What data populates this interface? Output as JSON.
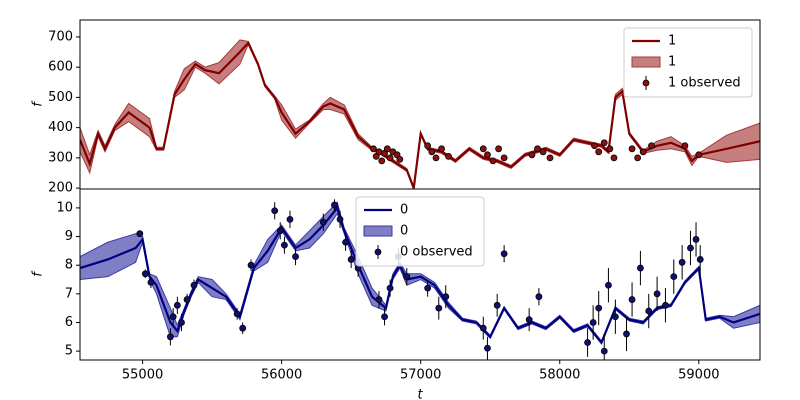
{
  "chart_data": [
    {
      "type": "line",
      "ylabel": "f",
      "xlim": [
        54550,
        59440
      ],
      "ylim": [
        197,
        756
      ],
      "yticks": [
        200,
        300,
        400,
        500,
        600,
        700
      ],
      "legend": "upper right",
      "series": [
        {
          "name": "1",
          "kind": "line",
          "color": "#800000",
          "x": [
            54550,
            54620,
            54680,
            54730,
            54800,
            54900,
            55050,
            55100,
            55150,
            55230,
            55300,
            55380,
            55450,
            55550,
            55700,
            55760,
            55830,
            55880,
            55950,
            56000,
            56100,
            56200,
            56300,
            56350,
            56450,
            56550,
            56650,
            56700,
            56800,
            56900,
            56950,
            57000,
            57050,
            57150,
            57250,
            57350,
            57450,
            57550,
            57650,
            57750,
            57900,
            58000,
            58100,
            58200,
            58300,
            58350,
            58400,
            58450,
            58500,
            58600,
            58700,
            58800,
            58900,
            58950,
            59000,
            59200,
            59440
          ],
          "values": [
            360,
            280,
            380,
            330,
            400,
            450,
            400,
            330,
            330,
            510,
            560,
            610,
            590,
            580,
            650,
            680,
            610,
            540,
            500,
            450,
            380,
            420,
            470,
            480,
            460,
            370,
            330,
            320,
            290,
            260,
            200,
            380,
            330,
            320,
            290,
            330,
            300,
            290,
            270,
            310,
            330,
            310,
            360,
            350,
            340,
            320,
            500,
            520,
            380,
            320,
            340,
            350,
            330,
            290,
            310,
            330,
            355
          ]
        },
        {
          "name": "1",
          "kind": "band",
          "color": "#a83a3a",
          "x": [
            54550,
            54620,
            54680,
            54730,
            54800,
            54900,
            55050,
            55100,
            55150,
            55230,
            55300,
            55380,
            55450,
            55550,
            55700,
            55760,
            55830,
            55880,
            55950,
            56000,
            56100,
            56200,
            56300,
            56350,
            56450,
            56550,
            56650,
            56700,
            56800,
            56900,
            56950,
            57000,
            57050,
            57150,
            57250,
            57350,
            57450,
            57550,
            57650,
            57750,
            57900,
            58000,
            58100,
            58200,
            58300,
            58350,
            58400,
            58450,
            58500,
            58600,
            58700,
            58800,
            58900,
            58950,
            59000,
            59200,
            59440
          ],
          "lower": [
            320,
            250,
            370,
            320,
            390,
            420,
            370,
            325,
            325,
            500,
            525,
            600,
            580,
            545,
            610,
            675,
            605,
            535,
            495,
            425,
            365,
            415,
            460,
            460,
            445,
            360,
            325,
            315,
            285,
            255,
            195,
            375,
            325,
            315,
            285,
            325,
            295,
            285,
            265,
            305,
            325,
            305,
            355,
            345,
            335,
            315,
            490,
            510,
            375,
            315,
            325,
            330,
            320,
            275,
            305,
            285,
            295
          ],
          "upper": [
            400,
            310,
            390,
            340,
            410,
            480,
            430,
            335,
            335,
            520,
            595,
            620,
            600,
            615,
            690,
            685,
            615,
            545,
            505,
            475,
            395,
            425,
            480,
            500,
            475,
            380,
            335,
            325,
            295,
            265,
            205,
            385,
            335,
            325,
            295,
            335,
            305,
            295,
            275,
            315,
            335,
            315,
            365,
            355,
            345,
            325,
            510,
            530,
            385,
            325,
            355,
            370,
            340,
            305,
            315,
            375,
            415
          ]
        },
        {
          "name": "1 observed",
          "kind": "errorbar",
          "color": "#8b1010",
          "x": [
            56660,
            56680,
            56700,
            56720,
            56740,
            56760,
            56780,
            56800,
            56830,
            56850,
            57050,
            57080,
            57110,
            57150,
            57200,
            57450,
            57480,
            57520,
            57560,
            57600,
            57800,
            57840,
            57880,
            57930,
            58250,
            58280,
            58320,
            58360,
            58390,
            58520,
            58560,
            58600,
            58660,
            58900,
            59000
          ],
          "values": [
            330,
            305,
            320,
            290,
            315,
            330,
            300,
            320,
            310,
            295,
            340,
            320,
            300,
            330,
            305,
            330,
            310,
            290,
            330,
            300,
            310,
            330,
            320,
            300,
            340,
            320,
            350,
            330,
            300,
            330,
            300,
            320,
            340,
            340,
            310
          ],
          "errors": [
            6,
            6,
            6,
            6,
            6,
            6,
            6,
            6,
            6,
            6,
            6,
            6,
            6,
            6,
            6,
            6,
            6,
            6,
            6,
            6,
            6,
            6,
            6,
            6,
            6,
            6,
            6,
            6,
            6,
            6,
            6,
            6,
            6,
            6,
            6
          ]
        }
      ]
    },
    {
      "type": "line",
      "xlabel": "t",
      "ylabel": "f",
      "xlim": [
        54550,
        59440
      ],
      "ylim": [
        4.69,
        10.66
      ],
      "xticks": [
        55000,
        56000,
        57000,
        58000,
        59000
      ],
      "yticks": [
        5,
        6,
        7,
        8,
        9,
        10
      ],
      "legend": "upper center",
      "series": [
        {
          "name": "0",
          "kind": "line",
          "color": "#000080",
          "x": [
            54550,
            54750,
            54950,
            55000,
            55050,
            55100,
            55200,
            55250,
            55300,
            55350,
            55400,
            55500,
            55600,
            55700,
            55800,
            55900,
            56000,
            56100,
            56200,
            56300,
            56400,
            56450,
            56550,
            56650,
            56750,
            56800,
            56850,
            56900,
            57000,
            57100,
            57200,
            57300,
            57400,
            57500,
            57600,
            57700,
            57800,
            57900,
            58000,
            58100,
            58200,
            58300,
            58400,
            58500,
            58600,
            58700,
            58800,
            58900,
            59000,
            59050,
            59150,
            59250,
            59440
          ],
          "values": [
            7.9,
            8.2,
            8.6,
            8.9,
            7.6,
            7.3,
            6.0,
            5.7,
            6.4,
            7.0,
            7.5,
            7.2,
            6.9,
            6.2,
            7.9,
            8.5,
            9.3,
            8.6,
            8.9,
            9.4,
            10.0,
            9.2,
            8.0,
            6.9,
            6.5,
            7.6,
            8.0,
            7.5,
            7.6,
            7.3,
            6.6,
            6.1,
            6.0,
            5.5,
            6.5,
            5.8,
            6.0,
            5.8,
            6.2,
            5.7,
            5.9,
            5.3,
            6.5,
            6.1,
            6.0,
            6.5,
            6.6,
            7.4,
            7.9,
            6.1,
            6.2,
            6.0,
            6.3
          ]
        },
        {
          "name": "0",
          "kind": "band",
          "color": "#3a3aa8",
          "x": [
            54550,
            54750,
            54950,
            55000,
            55050,
            55100,
            55200,
            55250,
            55300,
            55350,
            55400,
            55500,
            55600,
            55700,
            55800,
            55900,
            56000,
            56100,
            56200,
            56300,
            56400,
            56450,
            56550,
            56650,
            56750,
            56800,
            56850,
            56900,
            57000,
            57100,
            57200,
            57300,
            57400,
            57500,
            57600,
            57700,
            57800,
            57900,
            58000,
            58100,
            58200,
            58300,
            58400,
            58500,
            58600,
            58700,
            58800,
            58900,
            59000,
            59050,
            59150,
            59250,
            59440
          ],
          "lower": [
            7.5,
            7.6,
            8.1,
            8.8,
            7.5,
            7.0,
            5.5,
            5.5,
            6.3,
            6.9,
            7.4,
            6.9,
            6.8,
            6.1,
            7.8,
            8.1,
            9.2,
            8.5,
            8.6,
            9.1,
            9.8,
            9.1,
            7.7,
            6.6,
            6.4,
            7.5,
            7.9,
            7.3,
            7.5,
            7.2,
            6.5,
            6.05,
            5.95,
            5.45,
            6.45,
            5.75,
            5.95,
            5.75,
            6.15,
            5.65,
            5.85,
            5.25,
            6.45,
            6.05,
            5.95,
            6.45,
            6.55,
            7.35,
            7.85,
            6.05,
            6.15,
            5.8,
            6.0
          ],
          "upper": [
            8.3,
            8.8,
            9.1,
            9.0,
            7.7,
            7.6,
            6.5,
            5.9,
            6.5,
            7.1,
            7.6,
            7.5,
            7.0,
            6.3,
            8.0,
            8.9,
            9.4,
            8.7,
            9.2,
            9.7,
            10.2,
            9.3,
            8.3,
            7.2,
            6.6,
            7.7,
            8.1,
            7.7,
            7.7,
            7.4,
            6.7,
            6.15,
            6.05,
            5.55,
            6.55,
            5.85,
            6.05,
            5.85,
            6.25,
            5.75,
            5.95,
            5.35,
            6.55,
            6.15,
            6.05,
            6.55,
            6.65,
            7.45,
            7.95,
            6.15,
            6.25,
            6.2,
            6.6
          ]
        },
        {
          "name": "0 observed",
          "kind": "errorbar",
          "color": "#101070",
          "x": [
            54980,
            55020,
            55060,
            55200,
            55220,
            55250,
            55280,
            55320,
            55370,
            55680,
            55720,
            55780,
            55950,
            55990,
            56020,
            56060,
            56100,
            56300,
            56380,
            56420,
            56460,
            56500,
            56550,
            56700,
            56740,
            56780,
            56840,
            56900,
            57050,
            57130,
            57180,
            57450,
            57480,
            57550,
            57600,
            57780,
            57850,
            58200,
            58240,
            58280,
            58320,
            58350,
            58400,
            58480,
            58520,
            58580,
            58640,
            58700,
            58760,
            58820,
            58880,
            58940,
            58980,
            59010
          ],
          "values": [
            9.1,
            7.7,
            7.4,
            5.5,
            6.2,
            6.6,
            6.0,
            6.8,
            7.3,
            6.3,
            5.8,
            8.0,
            9.9,
            9.2,
            8.7,
            9.6,
            8.3,
            9.5,
            10.1,
            9.6,
            8.8,
            8.2,
            7.9,
            6.8,
            6.2,
            7.2,
            8.3,
            7.6,
            7.2,
            6.5,
            6.9,
            5.8,
            5.1,
            6.6,
            8.4,
            6.1,
            6.9,
            5.3,
            6.0,
            6.5,
            5.0,
            7.3,
            6.2,
            5.6,
            6.8,
            7.9,
            6.4,
            7.0,
            6.6,
            7.6,
            8.1,
            8.6,
            8.9,
            8.2
          ],
          "errors": [
            0.1,
            0.15,
            0.2,
            0.3,
            0.3,
            0.3,
            0.3,
            0.2,
            0.2,
            0.2,
            0.2,
            0.2,
            0.3,
            0.3,
            0.3,
            0.3,
            0.3,
            0.3,
            0.2,
            0.3,
            0.3,
            0.3,
            0.3,
            0.3,
            0.3,
            0.3,
            0.3,
            0.3,
            0.3,
            0.4,
            0.4,
            0.4,
            0.4,
            0.4,
            0.3,
            0.4,
            0.3,
            0.5,
            0.6,
            0.6,
            0.6,
            0.6,
            0.6,
            0.6,
            0.6,
            0.6,
            0.6,
            0.6,
            0.6,
            0.6,
            0.6,
            0.6,
            0.6,
            0.5
          ]
        }
      ]
    }
  ]
}
